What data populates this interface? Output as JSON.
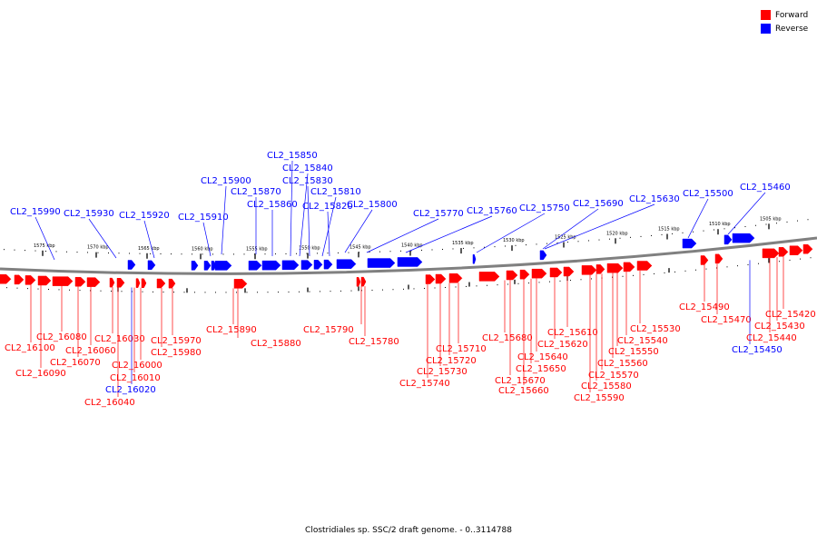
{
  "colors": {
    "forward": "#ff0000",
    "reverse": "#0000ff",
    "backbone": "#808080"
  },
  "legend": [
    {
      "label": "Forward",
      "color": "#ff0000"
    },
    {
      "label": "Reverse",
      "color": "#0000ff"
    }
  ],
  "caption": "Clostridiales sp. SSC/2 draft genome. - 0..3114788",
  "scale_ticks": [
    "1575 kbp",
    "1570 kbp",
    "1565 kbp",
    "1560 kbp",
    "1555 kbp",
    "1550 kbp",
    "1545 kbp",
    "1540 kbp",
    "1535 kbp",
    "1530 kbp",
    "1525 kbp",
    "1520 kbp",
    "1515 kbp",
    "1510 kbp",
    "1505 kbp"
  ],
  "reverse_labels": [
    "CL2_15990",
    "CL2_15930",
    "CL2_15920",
    "CL2_15910",
    "CL2_15900",
    "CL2_15870",
    "CL2_15860",
    "CL2_15850",
    "CL2_15840",
    "CL2_15830",
    "CL2_15810",
    "CL2_15820",
    "CL2_15800",
    "CL2_15770",
    "CL2_15760",
    "CL2_15750",
    "CL2_15690",
    "CL2_15630",
    "CL2_15500",
    "CL2_15460"
  ],
  "lower_labels": [
    {
      "text": "CL2_16100",
      "strand": "forward"
    },
    {
      "text": "CL2_16090",
      "strand": "forward"
    },
    {
      "text": "CL2_16080",
      "strand": "forward"
    },
    {
      "text": "CL2_16070",
      "strand": "forward"
    },
    {
      "text": "CL2_16060",
      "strand": "forward"
    },
    {
      "text": "CL2_16040",
      "strand": "forward"
    },
    {
      "text": "CL2_16030",
      "strand": "forward"
    },
    {
      "text": "CL2_16020",
      "strand": "reverse"
    },
    {
      "text": "CL2_16010",
      "strand": "forward"
    },
    {
      "text": "CL2_16000",
      "strand": "forward"
    },
    {
      "text": "CL2_15980",
      "strand": "forward"
    },
    {
      "text": "CL2_15970",
      "strand": "forward"
    },
    {
      "text": "CL2_15890",
      "strand": "forward"
    },
    {
      "text": "CL2_15880",
      "strand": "forward"
    },
    {
      "text": "CL2_15790",
      "strand": "forward"
    },
    {
      "text": "CL2_15780",
      "strand": "forward"
    },
    {
      "text": "CL2_15740",
      "strand": "forward"
    },
    {
      "text": "CL2_15730",
      "strand": "forward"
    },
    {
      "text": "CL2_15720",
      "strand": "forward"
    },
    {
      "text": "CL2_15710",
      "strand": "forward"
    },
    {
      "text": "CL2_15680",
      "strand": "forward"
    },
    {
      "text": "CL2_15670",
      "strand": "forward"
    },
    {
      "text": "CL2_15660",
      "strand": "forward"
    },
    {
      "text": "CL2_15650",
      "strand": "forward"
    },
    {
      "text": "CL2_15640",
      "strand": "forward"
    },
    {
      "text": "CL2_15620",
      "strand": "forward"
    },
    {
      "text": "CL2_15610",
      "strand": "forward"
    },
    {
      "text": "CL2_15590",
      "strand": "forward"
    },
    {
      "text": "CL2_15580",
      "strand": "forward"
    },
    {
      "text": "CL2_15570",
      "strand": "forward"
    },
    {
      "text": "CL2_15560",
      "strand": "forward"
    },
    {
      "text": "CL2_15550",
      "strand": "forward"
    },
    {
      "text": "CL2_15540",
      "strand": "forward"
    },
    {
      "text": "CL2_15530",
      "strand": "forward"
    },
    {
      "text": "CL2_15490",
      "strand": "forward"
    },
    {
      "text": "CL2_15470",
      "strand": "forward"
    },
    {
      "text": "CL2_15450",
      "strand": "reverse"
    },
    {
      "text": "CL2_15440",
      "strand": "forward"
    },
    {
      "text": "CL2_15430",
      "strand": "forward"
    },
    {
      "text": "CL2_15420",
      "strand": "forward"
    }
  ]
}
